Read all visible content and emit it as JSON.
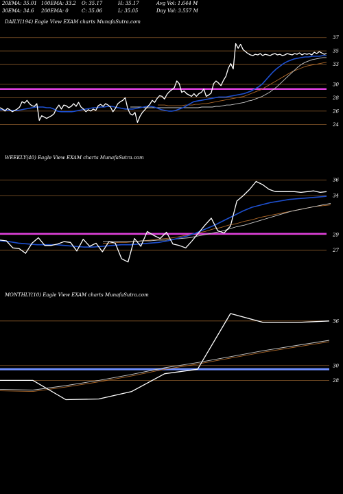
{
  "header": {
    "row1": [
      "20EMA: 35.01",
      "100EMA: 33.2",
      "O: 35.17",
      "H: 35.17",
      "Avg Vol: 1.644  M"
    ],
    "row2": [
      "30EMA: 34.6",
      "200EMA: 0",
      "C: 35.06",
      "L: 35.05",
      "Day Vol: 3.557 M"
    ]
  },
  "captions": {
    "daily": "DAILY(194) Eagle   View  EXAM charts MunafaSutra.com",
    "weekly": "WEEKLY(40) Eagle   View  EXAM charts MunafaSutra.com",
    "monthly": "MONTHLY(10) Eagle   View  EXAM charts MunafaSutra.com"
  },
  "colors": {
    "background": "#000000",
    "price": "#ffffff",
    "ema_fast": "#1e50d0",
    "ema_slow": "#cccccc",
    "ema_long": "#b06a2a",
    "level_line": "#8a5a2a",
    "magenta_band": "#e040e0",
    "blue_band": "#6f8fff"
  },
  "chart_data": [
    {
      "type": "line",
      "panel": "daily",
      "ylabels": [
        "37",
        "35",
        "33",
        "30",
        "28",
        "26",
        "24"
      ],
      "levels": [
        37,
        35,
        33,
        30,
        28,
        26,
        24
      ],
      "band": 29.3,
      "ylim": [
        22.7,
        38.1
      ],
      "series": [
        {
          "key": "price",
          "values": [
            26.5,
            26.3,
            26.0,
            26.4,
            26.2,
            25.9,
            26.1,
            26.3,
            26.6,
            27.4,
            27.2,
            27.6,
            27.1,
            26.8,
            26.7,
            27.1,
            24.6,
            25.3,
            25.1,
            24.9,
            25.1,
            25.3,
            25.6,
            26.4,
            26.9,
            26.3,
            26.9,
            26.8,
            26.5,
            26.7,
            27.1,
            26.7,
            27.3,
            26.6,
            26.3,
            25.9,
            26.2,
            26.0,
            26.3,
            26.1,
            26.8,
            27.0,
            26.7,
            27.1,
            26.9,
            26.6,
            25.9,
            26.4,
            27.1,
            27.4,
            27.6,
            28.0,
            26.4,
            25.6,
            25.4,
            25.8,
            24.3,
            25.2,
            25.8,
            26.2,
            26.6,
            27.0,
            27.6,
            27.3,
            27.9,
            28.3,
            28.2,
            27.8,
            28.5,
            28.9,
            29.2,
            29.5,
            30.5,
            30.1,
            28.8,
            29.0,
            28.6,
            28.4,
            28.2,
            28.6,
            28.2,
            28.6,
            28.8,
            29.3,
            28.2,
            28.4,
            28.7,
            30.1,
            30.5,
            30.2,
            29.8,
            30.6,
            31.2,
            32.4,
            33.1,
            32.3,
            36.1,
            35.4,
            36.0,
            35.2,
            34.9,
            34.6,
            34.4,
            34.3,
            34.5,
            34.4,
            34.6,
            34.3,
            34.5,
            34.4,
            34.3,
            34.5,
            34.6,
            34.4,
            34.5,
            34.3,
            34.4,
            34.6,
            34.5,
            34.4,
            34.6,
            34.5,
            34.7,
            34.4,
            34.6,
            34.5,
            34.6,
            34.4,
            34.8,
            34.6,
            34.9,
            34.7,
            34.5,
            34.6
          ]
        },
        {
          "key": "ema_fast",
          "values": [
            26.2,
            26.2,
            26.1,
            26.1,
            26.1,
            26.1,
            26.2,
            26.3,
            26.4,
            26.5,
            26.6,
            26.6,
            26.6,
            26.5,
            26.5,
            26.3,
            26.0,
            25.9,
            25.9,
            25.9,
            25.9,
            26.0,
            26.1,
            26.2,
            26.3,
            26.4,
            26.5,
            26.5,
            26.6,
            26.6,
            26.7,
            26.7,
            26.6,
            26.5,
            26.4,
            26.3,
            26.3,
            26.3,
            26.4,
            26.5,
            26.6,
            26.7,
            26.7,
            26.6,
            26.4,
            26.2,
            26.1,
            26.0,
            26.0,
            26.1,
            26.3,
            26.5,
            26.8,
            27.1,
            27.4,
            27.5,
            27.6,
            27.7,
            27.8,
            27.9,
            28.0,
            28.1,
            28.1,
            28.1,
            28.2,
            28.3,
            28.4,
            28.5,
            28.6,
            28.8,
            29.0,
            29.3,
            29.6,
            30.0,
            30.6,
            31.2,
            31.8,
            32.3,
            32.7,
            33.1,
            33.4,
            33.6,
            33.8,
            33.9,
            34.0,
            34.1,
            34.1,
            34.2,
            34.2,
            34.2,
            34.3,
            34.3
          ]
        },
        {
          "key": "ema_slow",
          "values": [
            26.6,
            26.6,
            26.6,
            26.6,
            26.5,
            26.5,
            26.5,
            26.5,
            26.5,
            26.5,
            26.5,
            26.5,
            26.5,
            26.5,
            26.5,
            26.5,
            26.5,
            26.5,
            26.5,
            26.5,
            26.6,
            26.6,
            26.6,
            26.6,
            26.7,
            26.7,
            26.8,
            26.9,
            26.9,
            27.0,
            27.1,
            27.2,
            27.3,
            27.5,
            27.6,
            27.8,
            28.0,
            28.2,
            28.5,
            28.8,
            29.2,
            29.6,
            30.1,
            30.6,
            31.1,
            31.6,
            32.1,
            32.6,
            33.0,
            33.3,
            33.5,
            33.7,
            33.8,
            33.9,
            34.0,
            34.0
          ]
        },
        {
          "key": "ema_long",
          "values": [
            26.9,
            26.9,
            26.9,
            26.8,
            26.8,
            26.8,
            26.8,
            26.8,
            26.9,
            26.9,
            26.9,
            27.0,
            27.0,
            27.1,
            27.1,
            27.2,
            27.3,
            27.4,
            27.5,
            27.6,
            27.7,
            27.8,
            27.9,
            28.0,
            28.1,
            28.2,
            28.4,
            28.6,
            28.8,
            29.0,
            29.2,
            29.5,
            29.8,
            30.1,
            30.4,
            30.7,
            31.0,
            31.3,
            31.6,
            31.9,
            32.1,
            32.3,
            32.5,
            32.7,
            32.8,
            32.9,
            33.0,
            33.1,
            33.2,
            33.3
          ]
        }
      ]
    },
    {
      "type": "line",
      "panel": "weekly",
      "ylabels": [
        "36",
        "34",
        "29",
        "27"
      ],
      "levels": [
        36,
        34,
        29,
        27
      ],
      "band": 29.1,
      "ylim": [
        24.6,
        37.6
      ],
      "series": [
        {
          "key": "price",
          "values": [
            28.3,
            28.2,
            27.3,
            27.2,
            26.6,
            27.9,
            28.6,
            27.6,
            27.6,
            27.8,
            28.1,
            28.0,
            26.9,
            28.4,
            27.5,
            27.9,
            26.8,
            28.1,
            27.9,
            25.9,
            25.5,
            28.5,
            27.5,
            29.4,
            28.9,
            28.5,
            29.3,
            27.8,
            27.6,
            27.3,
            28.2,
            29.2,
            30.2,
            31.1,
            29.5,
            29.2,
            30.1,
            33.3,
            34.0,
            34.8,
            35.8,
            35.4,
            34.8,
            34.5,
            34.5,
            34.5,
            34.5,
            34.4,
            34.5,
            34.6,
            34.4,
            34.5
          ]
        },
        {
          "key": "ema_fast",
          "values": [
            28.2,
            28.1,
            27.9,
            27.8,
            27.7,
            27.7,
            27.7,
            27.6,
            27.5,
            27.4,
            27.4,
            27.5,
            27.6,
            27.7,
            27.7,
            27.8,
            27.9,
            28.0,
            28.2,
            28.5,
            28.8,
            29.2,
            29.7,
            30.2,
            30.8,
            31.4,
            32.0,
            32.5,
            32.8,
            33.1,
            33.3,
            33.5,
            33.6,
            33.7,
            33.8,
            33.9
          ]
        },
        {
          "key": "ema_slow",
          "values": [
            28.1,
            28.1,
            28.1,
            28.1,
            28.1,
            28.2,
            28.2,
            28.3,
            28.3,
            28.4,
            28.5,
            28.6,
            28.8,
            29.0,
            29.2,
            29.4,
            29.7,
            30.0,
            30.2,
            30.5,
            30.8,
            31.1,
            31.4,
            31.7,
            32.0,
            32.2,
            32.4,
            32.6,
            32.8,
            33.0
          ]
        },
        {
          "key": "ema_long",
          "values": [
            27.9,
            27.9,
            28.0,
            28.0,
            28.1,
            28.2,
            28.3,
            28.4,
            28.5,
            28.6,
            28.8,
            29.0,
            29.2,
            29.4,
            29.7,
            29.9,
            30.2,
            30.4,
            30.7,
            30.9,
            31.2,
            31.4,
            31.6,
            31.8,
            32.0,
            32.2,
            32.4,
            32.6,
            32.7,
            32.8
          ]
        }
      ]
    },
    {
      "type": "line",
      "panel": "monthly",
      "ylabels": [
        "36",
        "30",
        "28"
      ],
      "levels": [
        36,
        30,
        28
      ],
      "band": 29.5,
      "ylim": [
        21.2,
        38.2
      ],
      "series": [
        {
          "key": "price",
          "values": [
            28.0,
            28.0,
            25.4,
            25.5,
            26.5,
            28.9,
            29.5,
            37.0,
            35.8,
            35.8,
            36.0
          ]
        },
        {
          "key": "ema_slow",
          "values": [
            26.8,
            26.7,
            27.3,
            28.0,
            28.8,
            29.7,
            30.4,
            31.2,
            32.0,
            32.7,
            33.4
          ]
        },
        {
          "key": "ema_long",
          "values": [
            26.6,
            26.5,
            27.1,
            27.8,
            28.6,
            29.5,
            30.2,
            31.0,
            31.8,
            32.5,
            33.2
          ]
        }
      ]
    }
  ]
}
